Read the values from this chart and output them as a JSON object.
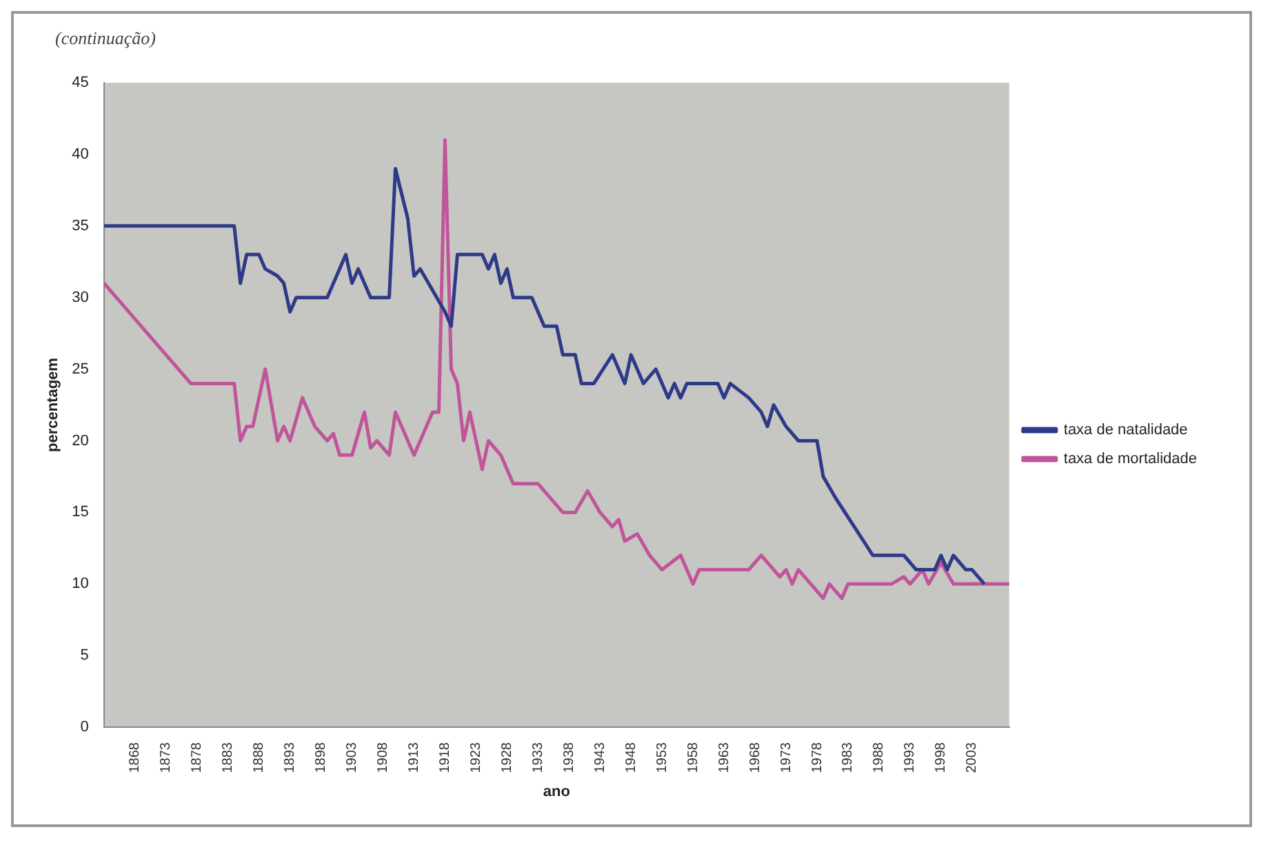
{
  "chart_data": {
    "type": "line",
    "annotations": [
      "(continuação)"
    ],
    "xlabel": "ano",
    "ylabel": "percentagem",
    "xlim": [
      1863,
      2009
    ],
    "xticks": [
      1868,
      1873,
      1878,
      1883,
      1888,
      1893,
      1898,
      1903,
      1908,
      1913,
      1918,
      1923,
      1928,
      1933,
      1938,
      1943,
      1948,
      1953,
      1958,
      1963,
      1968,
      1973,
      1978,
      1983,
      1988,
      1993,
      1998,
      2003
    ],
    "ylim": [
      0,
      45
    ],
    "yticks": [
      0,
      5,
      10,
      15,
      20,
      25,
      30,
      35,
      40,
      45
    ],
    "grid": false,
    "legend": "right",
    "marker": "none",
    "line_style": "solid",
    "series": [
      {
        "name": "taxa de natalidade",
        "color": "#2e3a87",
        "x": [
          1863,
          1884,
          1885,
          1886,
          1888,
          1889,
          1891,
          1892,
          1893,
          1894,
          1899,
          1902,
          1903,
          1904,
          1905,
          1906,
          1909,
          1910,
          1912,
          1913,
          1914,
          1916,
          1918,
          1919,
          1920,
          1923,
          1924,
          1925,
          1926,
          1927,
          1928,
          1929,
          1932,
          1934,
          1936,
          1937,
          1939,
          1940,
          1942,
          1945,
          1947,
          1948,
          1950,
          1952,
          1954,
          1955,
          1956,
          1957,
          1962,
          1963,
          1964,
          1967,
          1969,
          1970,
          1971,
          1973,
          1975,
          1978,
          1979,
          1981,
          1984,
          1987,
          1992,
          1994,
          1997,
          1998,
          1999,
          2000,
          2002,
          2003,
          2005
        ],
        "values": [
          35,
          35,
          31,
          33,
          33,
          32,
          31.5,
          31,
          29,
          30,
          30,
          33,
          31,
          32,
          31,
          30,
          30,
          39,
          35.5,
          31.5,
          32,
          30.5,
          29,
          28,
          33,
          33,
          33,
          32,
          33,
          31,
          32,
          30,
          30,
          28,
          28,
          26,
          26,
          24,
          24,
          26,
          24,
          26,
          24,
          25,
          23,
          24,
          23,
          24,
          24,
          23,
          24,
          23,
          22,
          21,
          22.5,
          21,
          20,
          20,
          17.5,
          16,
          14,
          12,
          12,
          11,
          11,
          12,
          11,
          12,
          11,
          11,
          10
        ]
      },
      {
        "name": "taxa de mortalidade",
        "color": "#c0559a",
        "x": [
          1863,
          1877,
          1884,
          1885,
          1886,
          1887,
          1889,
          1891,
          1892,
          1893,
          1895,
          1897,
          1899,
          1900,
          1901,
          1903,
          1905,
          1906,
          1907,
          1909,
          1910,
          1912,
          1913,
          1916,
          1917,
          1918,
          1919,
          1920,
          1921,
          1922,
          1923,
          1924,
          1925,
          1927,
          1929,
          1933,
          1935,
          1937,
          1939,
          1941,
          1943,
          1945,
          1946,
          1947,
          1949,
          1951,
          1953,
          1956,
          1958,
          1959,
          1967,
          1969,
          1972,
          1973,
          1974,
          1975,
          1979,
          1980,
          1982,
          1983,
          1990,
          1992,
          1993,
          1995,
          1996,
          1998,
          2000,
          2009
        ],
        "values": [
          31,
          24,
          24,
          20,
          21,
          21,
          25,
          20,
          21,
          20,
          23,
          21,
          20,
          20.5,
          19,
          19,
          22,
          19.5,
          20,
          19,
          22,
          20,
          19,
          22,
          22,
          41,
          25,
          24,
          20,
          22,
          20,
          18,
          20,
          19,
          17,
          17,
          16,
          15,
          15,
          16.5,
          15,
          14,
          14.5,
          13,
          13.5,
          12,
          11,
          12,
          10,
          11,
          11,
          12,
          10.5,
          11,
          10,
          11,
          9,
          10,
          9,
          10,
          10,
          10.5,
          10,
          11,
          10,
          11.5,
          10,
          10
        ]
      }
    ]
  }
}
